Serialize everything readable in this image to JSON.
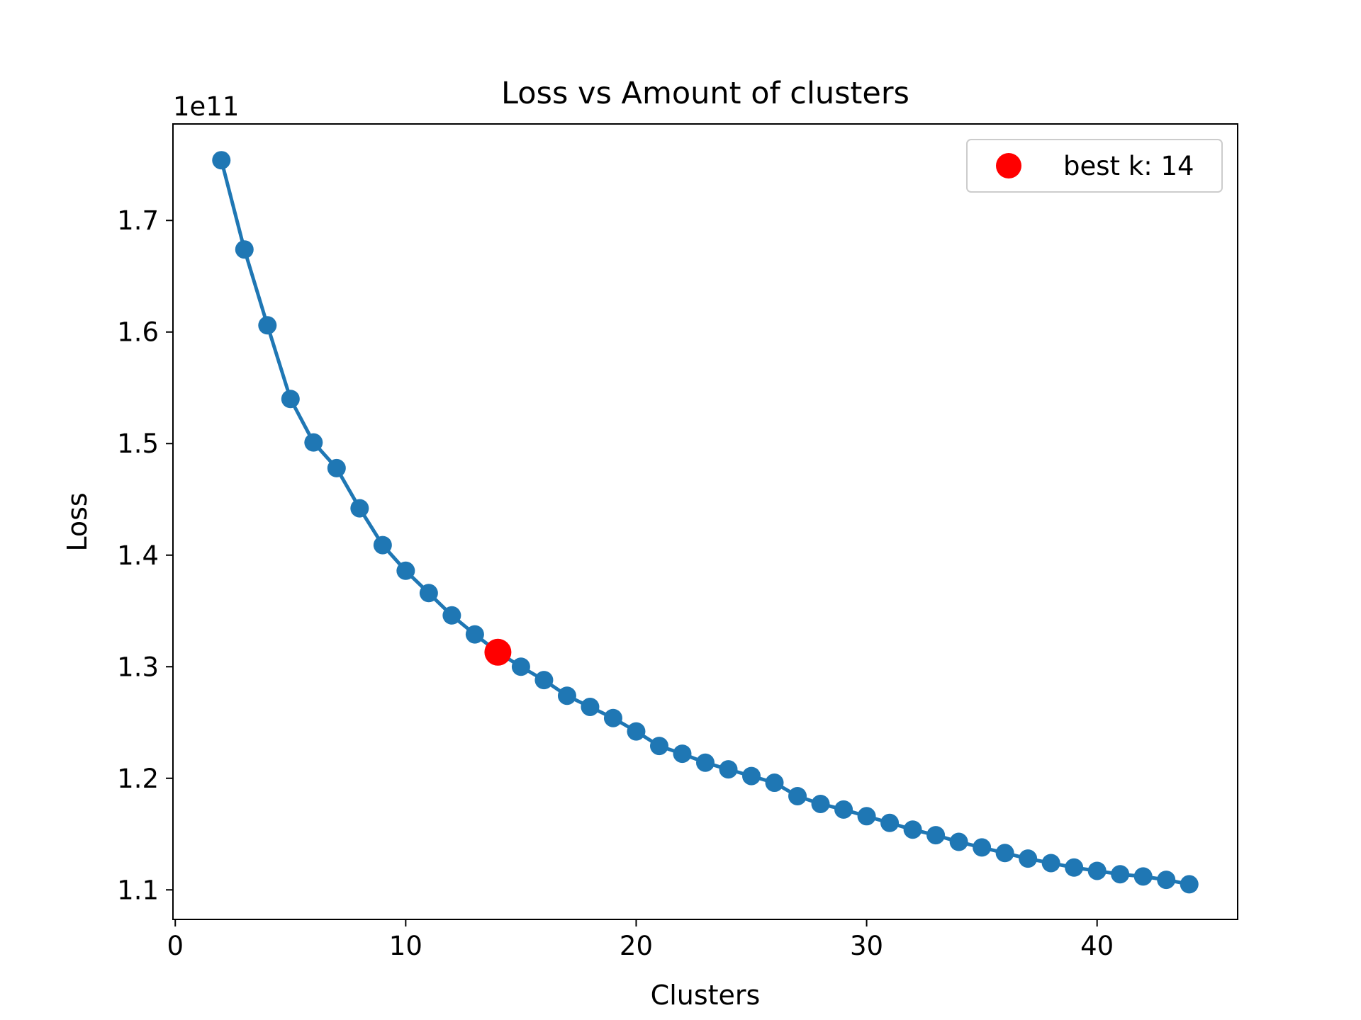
{
  "chart_data": {
    "type": "line",
    "title": "Loss vs Amount of clusters",
    "xlabel": "Clusters",
    "ylabel": "Loss",
    "y_offset_label": "1e11",
    "xlim": [
      -0.1,
      46.1
    ],
    "ylim": [
      1.0735,
      1.7865
    ],
    "x_ticks": [
      0,
      10,
      20,
      30,
      40
    ],
    "y_ticks": [
      1.1,
      1.2,
      1.3,
      1.4,
      1.5,
      1.6,
      1.7
    ],
    "x_tick_labels": [
      "0",
      "10",
      "20",
      "30",
      "40"
    ],
    "y_tick_labels": [
      "1.1",
      "1.2",
      "1.3",
      "1.4",
      "1.5",
      "1.6",
      "1.7"
    ],
    "grid": false,
    "series": [
      {
        "color": "#1f77b4",
        "marker": "circle",
        "x": [
          2,
          3,
          4,
          5,
          6,
          7,
          8,
          9,
          10,
          11,
          12,
          13,
          14,
          15,
          16,
          17,
          18,
          19,
          20,
          21,
          22,
          23,
          24,
          25,
          26,
          27,
          28,
          29,
          30,
          31,
          32,
          33,
          34,
          35,
          36,
          37,
          38,
          39,
          40,
          41,
          42,
          43,
          44
        ],
        "y": [
          1.754,
          1.674,
          1.606,
          1.54,
          1.501,
          1.478,
          1.442,
          1.409,
          1.386,
          1.366,
          1.346,
          1.329,
          1.313,
          1.3,
          1.288,
          1.274,
          1.264,
          1.254,
          1.242,
          1.229,
          1.222,
          1.214,
          1.208,
          1.202,
          1.196,
          1.184,
          1.177,
          1.172,
          1.166,
          1.16,
          1.154,
          1.149,
          1.143,
          1.138,
          1.133,
          1.128,
          1.124,
          1.12,
          1.117,
          1.114,
          1.112,
          1.109,
          1.105
        ]
      }
    ],
    "highlight": {
      "x": 14,
      "y": 1.313,
      "color": "#ff0000",
      "label": "best k: 14"
    },
    "legend": {
      "position": "top-right",
      "entries": [
        "best k: 14"
      ]
    }
  }
}
